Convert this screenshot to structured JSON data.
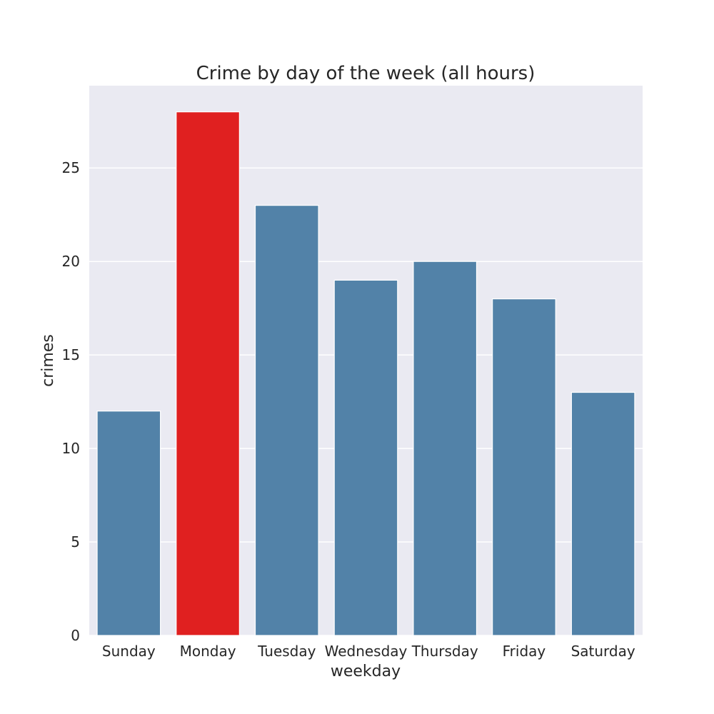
{
  "chart_data": {
    "type": "bar",
    "title": "Crime by day of the week (all hours)",
    "xlabel": "weekday",
    "ylabel": "crimes",
    "categories": [
      "Sunday",
      "Monday",
      "Tuesday",
      "Wednesday",
      "Thursday",
      "Friday",
      "Saturday"
    ],
    "values": [
      12,
      28,
      23,
      19,
      20,
      18,
      13
    ],
    "colors": [
      "#5282a8",
      "#e02020",
      "#5282a8",
      "#5282a8",
      "#5282a8",
      "#5282a8",
      "#5282a8"
    ],
    "yticks": [
      0,
      5,
      10,
      15,
      20,
      25
    ],
    "ylim": [
      0,
      29.4
    ],
    "grid": true,
    "background": "#eaeaf2"
  }
}
